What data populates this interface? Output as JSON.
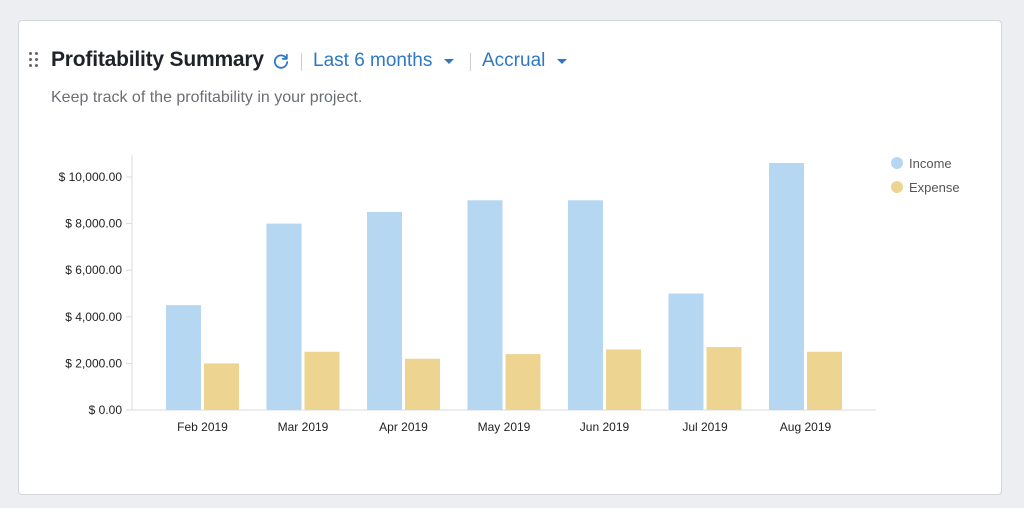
{
  "header": {
    "title": "Profitability Summary",
    "period_label": "Last 6 months",
    "basis_label": "Accrual",
    "subtitle": "Keep track of the profitability in your project."
  },
  "colors": {
    "income": "#b6d7f2",
    "expense": "#edd591",
    "accent": "#2f77c4"
  },
  "icons": {
    "drag": "drag-handle-icon",
    "refresh": "refresh-icon",
    "caret": "caret-down-icon"
  },
  "chart_data": {
    "type": "bar",
    "categories": [
      "Feb 2019",
      "Mar 2019",
      "Apr 2019",
      "May 2019",
      "Jun 2019",
      "Jul 2019",
      "Aug 2019"
    ],
    "series": [
      {
        "name": "Income",
        "values": [
          4500,
          8000,
          8500,
          9000,
          9000,
          5000,
          10600
        ]
      },
      {
        "name": "Expense",
        "values": [
          2000,
          2500,
          2200,
          2400,
          2600,
          2700,
          2500
        ]
      }
    ],
    "yticks": [
      "$ 0.00",
      "$ 2,000.00",
      "$ 4,000.00",
      "$ 6,000.00",
      "$ 8,000.00",
      "$ 10,000.00"
    ],
    "ytick_values": [
      0,
      2000,
      4000,
      6000,
      8000,
      10000
    ],
    "ylim": [
      0,
      11000
    ],
    "grid": false,
    "legend_position": "top-right"
  }
}
